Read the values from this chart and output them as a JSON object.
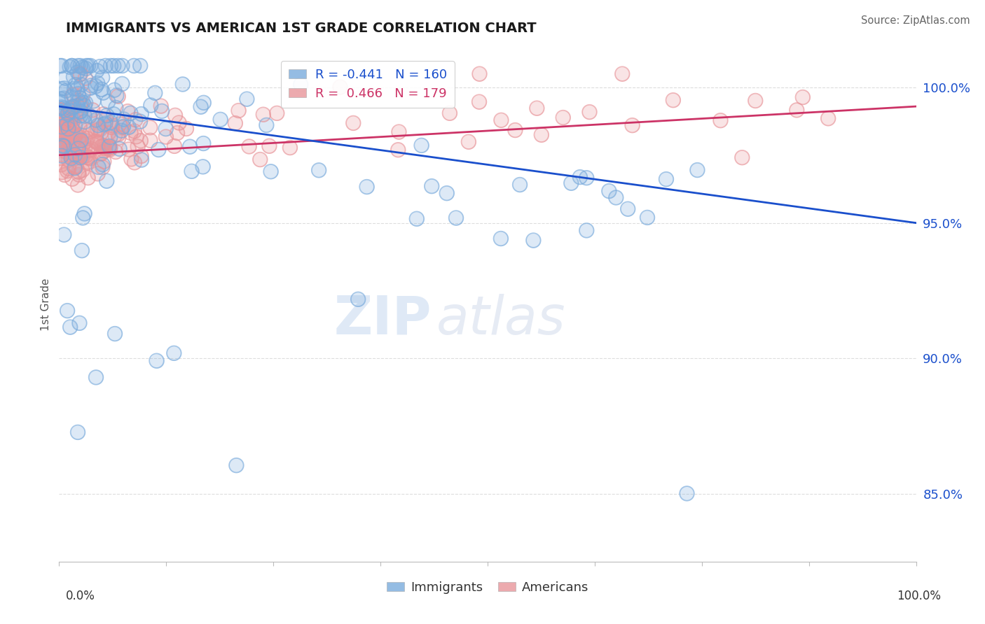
{
  "title": "IMMIGRANTS VS AMERICAN 1ST GRADE CORRELATION CHART",
  "source": "Source: ZipAtlas.com",
  "ylabel": "1st Grade",
  "legend_immigrants": "Immigrants",
  "legend_americans": "Americans",
  "R_immigrants": -0.441,
  "N_immigrants": 160,
  "R_americans": 0.466,
  "N_americans": 179,
  "color_immigrants": "#7aabdc",
  "color_americans": "#e8959a",
  "line_color_immigrants": "#1a4fcc",
  "line_color_americans": "#cc3366",
  "watermark_text": "ZIP",
  "watermark_text2": "atlas",
  "xlim": [
    0.0,
    1.0
  ],
  "ylim": [
    0.825,
    1.015
  ],
  "yticks": [
    0.85,
    0.9,
    0.95,
    1.0
  ],
  "ytick_labels": [
    "85.0%",
    "90.0%",
    "95.0%",
    "100.0%"
  ],
  "background_color": "#ffffff",
  "grid_color": "#dddddd"
}
